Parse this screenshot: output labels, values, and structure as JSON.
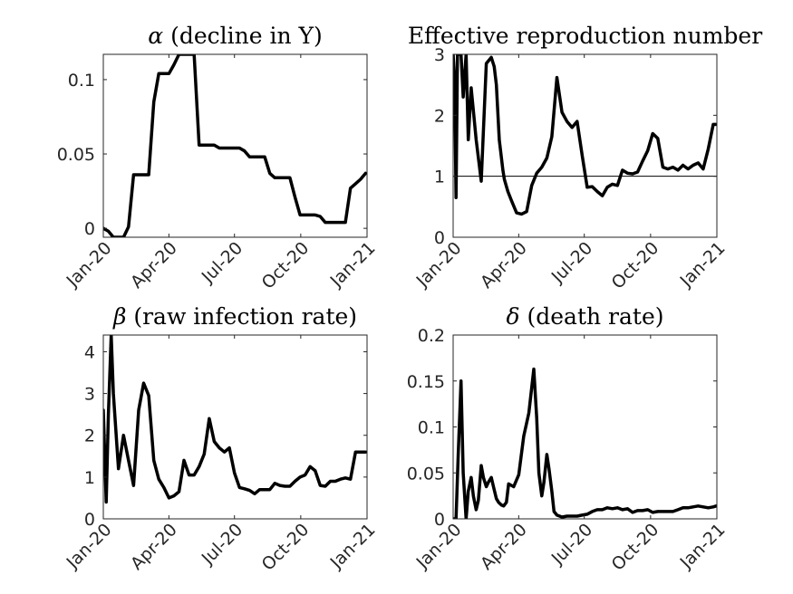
{
  "chart_data": [
    {
      "type": "line",
      "title": "α (decline in Y)",
      "title_math": "α",
      "title_text": " (decline in Y)",
      "x_tick_labels": [
        "Jan-20",
        "Apr-20",
        "Jul-20",
        "Oct-20",
        "Jan-21"
      ],
      "x": [
        "2020-01-01",
        "2020-01-08",
        "2020-01-15",
        "2020-01-22",
        "2020-01-29",
        "2020-02-05",
        "2020-02-12",
        "2020-02-19",
        "2020-02-26",
        "2020-03-04",
        "2020-03-11",
        "2020-03-18",
        "2020-03-25",
        "2020-04-01",
        "2020-04-08",
        "2020-04-15",
        "2020-04-22",
        "2020-04-29",
        "2020-05-06",
        "2020-05-13",
        "2020-05-20",
        "2020-05-27",
        "2020-06-03",
        "2020-06-10",
        "2020-06-17",
        "2020-06-24",
        "2020-07-01",
        "2020-07-08",
        "2020-07-15",
        "2020-07-22",
        "2020-07-29",
        "2020-08-05",
        "2020-08-12",
        "2020-08-19",
        "2020-08-26",
        "2020-09-02",
        "2020-09-09",
        "2020-09-16",
        "2020-09-23",
        "2020-09-30",
        "2020-10-07",
        "2020-10-14",
        "2020-10-21",
        "2020-10-28",
        "2020-11-04",
        "2020-11-11",
        "2020-11-18",
        "2020-11-25",
        "2020-12-02",
        "2020-12-09",
        "2020-12-16",
        "2020-12-23",
        "2020-12-30"
      ],
      "y": [
        0.0,
        -0.002,
        -0.006,
        -0.006,
        -0.006,
        0.001,
        0.036,
        0.036,
        0.036,
        0.036,
        0.085,
        0.104,
        0.104,
        0.104,
        0.11,
        0.117,
        0.117,
        0.117,
        0.117,
        0.056,
        0.056,
        0.056,
        0.056,
        0.054,
        0.054,
        0.054,
        0.054,
        0.054,
        0.052,
        0.048,
        0.048,
        0.048,
        0.048,
        0.037,
        0.034,
        0.034,
        0.034,
        0.034,
        0.021,
        0.009,
        0.009,
        0.009,
        0.009,
        0.008,
        0.004,
        0.004,
        0.004,
        0.004,
        0.004,
        0.027,
        0.03,
        0.033,
        0.037
      ],
      "ylim": [
        -0.006,
        0.117
      ],
      "yticks": [
        0,
        0.05,
        0.1
      ],
      "ytick_labels": [
        "0",
        "0.05",
        "0.1"
      ],
      "ref_line": null
    },
    {
      "type": "line",
      "title": "Effective reproduction number",
      "title_math": "",
      "title_text": "Effective reproduction number",
      "x_tick_labels": [
        "Jan-20",
        "Apr-20",
        "Jul-20",
        "Oct-20",
        "Jan-21"
      ],
      "x": [
        "2020-01-01",
        "2020-01-03",
        "2020-01-05",
        "2020-01-07",
        "2020-01-12",
        "2020-01-15",
        "2020-01-19",
        "2020-01-22",
        "2020-01-26",
        "2020-02-02",
        "2020-02-09",
        "2020-02-16",
        "2020-02-23",
        "2020-02-27",
        "2020-03-01",
        "2020-03-05",
        "2020-03-10",
        "2020-03-12",
        "2020-03-17",
        "2020-03-22",
        "2020-03-29",
        "2020-04-05",
        "2020-04-12",
        "2020-04-19",
        "2020-04-26",
        "2020-05-03",
        "2020-05-10",
        "2020-05-17",
        "2020-05-24",
        "2020-05-31",
        "2020-06-07",
        "2020-06-14",
        "2020-06-21",
        "2020-06-28",
        "2020-07-05",
        "2020-07-12",
        "2020-07-19",
        "2020-07-26",
        "2020-08-02",
        "2020-08-09",
        "2020-08-16",
        "2020-08-23",
        "2020-08-30",
        "2020-09-06",
        "2020-09-13",
        "2020-09-20",
        "2020-09-27",
        "2020-10-04",
        "2020-10-11",
        "2020-10-18",
        "2020-10-25",
        "2020-11-01",
        "2020-11-08",
        "2020-11-15",
        "2020-11-22",
        "2020-11-29",
        "2020-12-06",
        "2020-12-13",
        "2020-12-20",
        "2020-12-27",
        "2020-12-31"
      ],
      "y": [
        3.0,
        2.6,
        0.65,
        3.0,
        3.0,
        2.3,
        3.0,
        1.6,
        2.45,
        1.6,
        0.92,
        2.85,
        2.95,
        2.8,
        2.5,
        1.6,
        1.1,
        0.95,
        0.75,
        0.6,
        0.4,
        0.38,
        0.42,
        0.85,
        1.05,
        1.15,
        1.3,
        1.65,
        2.62,
        2.05,
        1.9,
        1.8,
        1.9,
        1.35,
        0.82,
        0.83,
        0.75,
        0.68,
        0.82,
        0.87,
        0.85,
        1.1,
        1.05,
        1.04,
        1.07,
        1.25,
        1.42,
        1.7,
        1.62,
        1.15,
        1.12,
        1.15,
        1.1,
        1.18,
        1.12,
        1.18,
        1.22,
        1.12,
        1.45,
        1.85,
        1.85
      ],
      "ylim": [
        0,
        3
      ],
      "yticks": [
        0,
        1,
        2,
        3
      ],
      "ytick_labels": [
        "0",
        "1",
        "2",
        "3"
      ],
      "ref_line": 1
    },
    {
      "type": "line",
      "title": "β (raw infection rate)",
      "title_math": "β",
      "title_text": " (raw infection rate)",
      "x_tick_labels": [
        "Jan-20",
        "Apr-20",
        "Jul-20",
        "Oct-20",
        "Jan-21"
      ],
      "x": [
        "2020-01-01",
        "2020-01-05",
        "2020-01-08",
        "2020-01-12",
        "2020-01-15",
        "2020-01-22",
        "2020-01-29",
        "2020-02-05",
        "2020-02-12",
        "2020-02-19",
        "2020-02-26",
        "2020-03-04",
        "2020-03-11",
        "2020-03-18",
        "2020-03-25",
        "2020-04-01",
        "2020-04-08",
        "2020-04-15",
        "2020-04-22",
        "2020-04-29",
        "2020-05-06",
        "2020-05-13",
        "2020-05-20",
        "2020-05-27",
        "2020-06-03",
        "2020-06-10",
        "2020-06-17",
        "2020-06-24",
        "2020-07-01",
        "2020-07-08",
        "2020-07-15",
        "2020-07-22",
        "2020-07-29",
        "2020-08-05",
        "2020-08-12",
        "2020-08-19",
        "2020-08-26",
        "2020-09-02",
        "2020-09-09",
        "2020-09-16",
        "2020-09-23",
        "2020-09-30",
        "2020-10-07",
        "2020-10-14",
        "2020-10-21",
        "2020-10-28",
        "2020-11-04",
        "2020-11-11",
        "2020-11-18",
        "2020-11-25",
        "2020-12-02",
        "2020-12-09",
        "2020-12-16",
        "2020-12-23",
        "2020-12-30"
      ],
      "y": [
        2.6,
        0.4,
        2.5,
        4.4,
        3.0,
        1.2,
        2.0,
        1.4,
        0.8,
        2.6,
        3.25,
        2.95,
        1.4,
        0.95,
        0.75,
        0.5,
        0.55,
        0.65,
        1.4,
        1.05,
        1.05,
        1.25,
        1.55,
        2.4,
        1.85,
        1.7,
        1.6,
        1.7,
        1.1,
        0.75,
        0.72,
        0.68,
        0.6,
        0.7,
        0.7,
        0.7,
        0.85,
        0.8,
        0.78,
        0.78,
        0.9,
        1.0,
        1.05,
        1.25,
        1.15,
        0.8,
        0.78,
        0.9,
        0.9,
        0.95,
        0.98,
        0.95,
        1.6,
        1.6,
        1.6
      ],
      "ylim": [
        0,
        4.4
      ],
      "yticks": [
        0,
        1,
        2,
        3,
        4
      ],
      "ytick_labels": [
        "0",
        "1",
        "2",
        "3",
        "4"
      ],
      "ref_line": null
    },
    {
      "type": "line",
      "title": "δ (death rate)",
      "title_math": "δ",
      "title_text": " (death rate)",
      "x_tick_labels": [
        "Jan-20",
        "Apr-20",
        "Jul-20",
        "Oct-20",
        "Jan-21"
      ],
      "x": [
        "2020-01-01",
        "2020-01-05",
        "2020-01-08",
        "2020-01-12",
        "2020-01-15",
        "2020-01-19",
        "2020-01-22",
        "2020-01-26",
        "2020-01-29",
        "2020-02-02",
        "2020-02-05",
        "2020-02-09",
        "2020-02-12",
        "2020-02-16",
        "2020-02-19",
        "2020-02-23",
        "2020-02-26",
        "2020-03-01",
        "2020-03-04",
        "2020-03-08",
        "2020-03-11",
        "2020-03-15",
        "2020-03-18",
        "2020-03-25",
        "2020-04-01",
        "2020-04-08",
        "2020-04-15",
        "2020-04-22",
        "2020-04-26",
        "2020-04-29",
        "2020-05-03",
        "2020-05-06",
        "2020-05-10",
        "2020-05-13",
        "2020-05-17",
        "2020-05-20",
        "2020-05-24",
        "2020-05-31",
        "2020-06-07",
        "2020-06-14",
        "2020-06-21",
        "2020-06-28",
        "2020-07-05",
        "2020-07-12",
        "2020-07-19",
        "2020-07-26",
        "2020-08-02",
        "2020-08-09",
        "2020-08-16",
        "2020-08-23",
        "2020-08-30",
        "2020-09-06",
        "2020-09-13",
        "2020-09-20",
        "2020-09-27",
        "2020-10-04",
        "2020-10-11",
        "2020-10-18",
        "2020-10-25",
        "2020-11-01",
        "2020-11-08",
        "2020-11-15",
        "2020-11-22",
        "2020-11-29",
        "2020-12-06",
        "2020-12-13",
        "2020-12-20",
        "2020-12-27",
        "2020-12-31"
      ],
      "y": [
        0.0,
        0.0,
        0.07,
        0.15,
        0.05,
        0.0,
        0.03,
        0.045,
        0.025,
        0.01,
        0.02,
        0.058,
        0.045,
        0.035,
        0.04,
        0.045,
        0.035,
        0.022,
        0.018,
        0.015,
        0.014,
        0.018,
        0.038,
        0.035,
        0.048,
        0.09,
        0.115,
        0.163,
        0.11,
        0.05,
        0.025,
        0.04,
        0.07,
        0.055,
        0.03,
        0.008,
        0.004,
        0.002,
        0.003,
        0.003,
        0.003,
        0.004,
        0.005,
        0.008,
        0.01,
        0.01,
        0.012,
        0.011,
        0.012,
        0.01,
        0.011,
        0.007,
        0.009,
        0.009,
        0.01,
        0.007,
        0.008,
        0.008,
        0.008,
        0.008,
        0.01,
        0.012,
        0.012,
        0.013,
        0.014,
        0.013,
        0.012,
        0.013,
        0.014
      ],
      "ylim": [
        0,
        0.2
      ],
      "yticks": [
        0,
        0.05,
        0.1,
        0.15,
        0.2
      ],
      "ytick_labels": [
        "0",
        "0.05",
        "0.1",
        "0.15",
        "0.2"
      ],
      "ref_line": null
    }
  ]
}
